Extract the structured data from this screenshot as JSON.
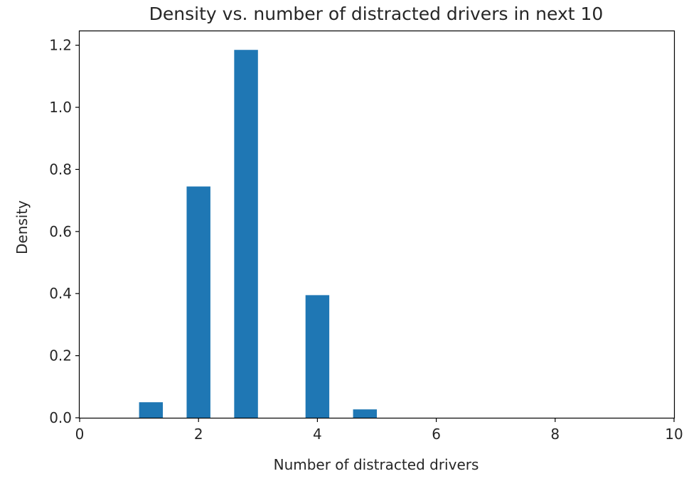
{
  "chart_data": {
    "type": "bar",
    "title": "Density vs. number of distracted drivers in next 10",
    "xlabel": "Number of distracted drivers",
    "ylabel": "Density",
    "xlim": [
      0,
      10
    ],
    "ylim": [
      0,
      1.245
    ],
    "xticks": [
      0,
      2,
      4,
      6,
      8,
      10
    ],
    "yticks": [
      0.0,
      0.2,
      0.4,
      0.6,
      0.8,
      1.0,
      1.2
    ],
    "ytick_labels": [
      "0.0",
      "0.2",
      "0.4",
      "0.6",
      "0.8",
      "1.0",
      "1.2"
    ],
    "xtick_labels": [
      "0",
      "2",
      "4",
      "6",
      "8",
      "10"
    ],
    "bin_width": 0.4,
    "bins": [
      {
        "x0": 1.0,
        "x1": 1.4,
        "value": 0.05
      },
      {
        "x0": 1.8,
        "x1": 2.2,
        "value": 0.745
      },
      {
        "x0": 2.6,
        "x1": 3.0,
        "value": 1.185
      },
      {
        "x0": 3.8,
        "x1": 4.2,
        "value": 0.395
      },
      {
        "x0": 4.6,
        "x1": 5.0,
        "value": 0.027
      }
    ],
    "bar_color": "#1f77b4",
    "grid": false
  }
}
